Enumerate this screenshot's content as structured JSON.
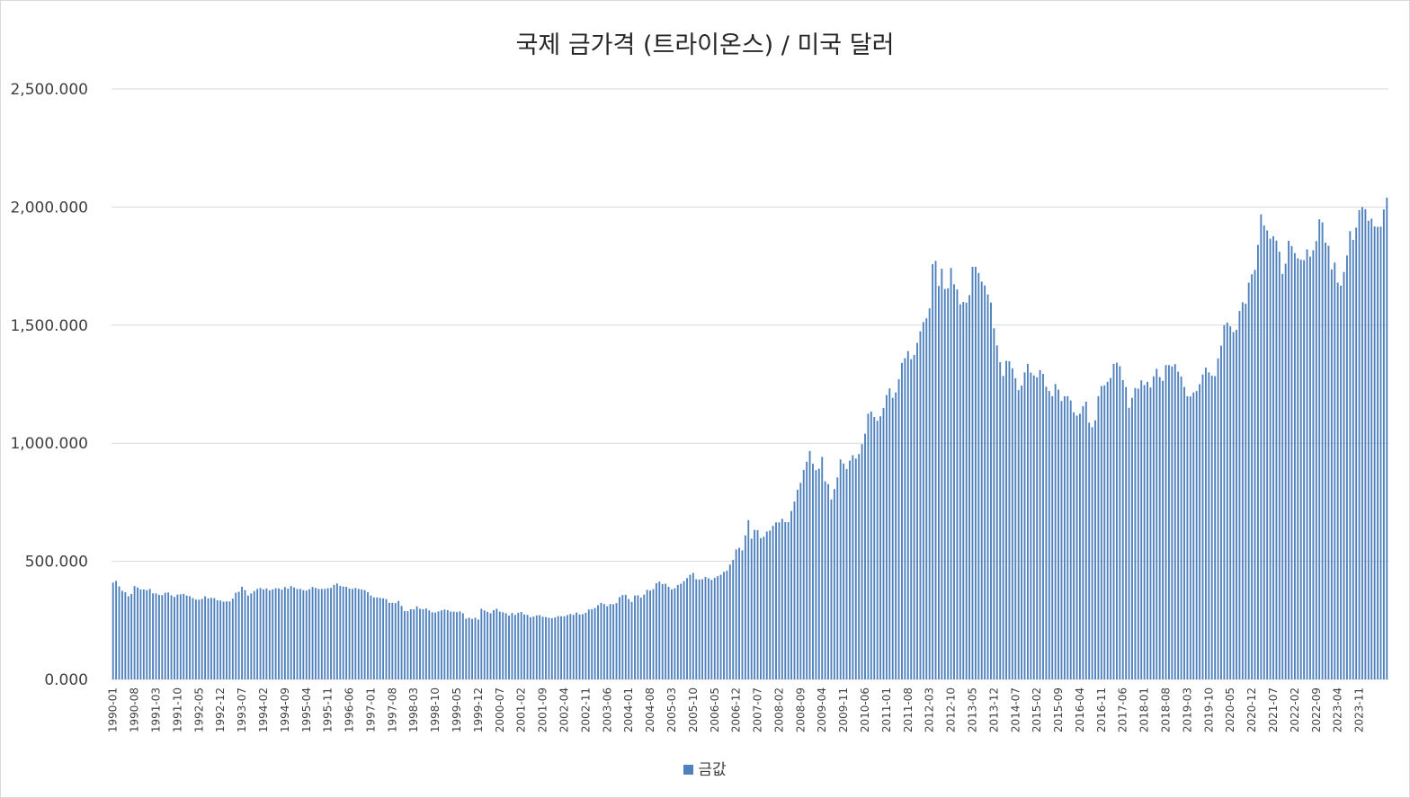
{
  "chart_data": {
    "type": "bar",
    "title": "국제 금가격 (트라이온스) / 미국 달러",
    "xlabel": "",
    "ylabel": "",
    "ylim": [
      0,
      2500
    ],
    "y_ticks": [
      "0.000",
      "500.000",
      "1,000.000",
      "1,500.000",
      "2,000.000",
      "2,500.000"
    ],
    "y_tick_values": [
      0,
      500,
      1000,
      1500,
      2000,
      2500
    ],
    "grid": true,
    "legend_position": "bottom",
    "bar_color": "#4f81bd",
    "x_tick_labels": [
      "1990-01",
      "1990-08",
      "1991-03",
      "1991-10",
      "1992-05",
      "1992-12",
      "1993-07",
      "1994-02",
      "1994-09",
      "1995-04",
      "1995-11",
      "1996-06",
      "1997-01",
      "1997-08",
      "1998-03",
      "1998-10",
      "1999-05",
      "1999-12",
      "2000-07",
      "2001-02",
      "2001-09",
      "2002-04",
      "2002-11",
      "2003-06",
      "2004-01",
      "2004-08",
      "2005-03",
      "2005-10",
      "2006-05",
      "2006-12",
      "2007-07",
      "2008-02",
      "2008-09",
      "2009-04",
      "2009-11",
      "2010-06",
      "2011-01",
      "2011-08",
      "2012-03",
      "2012-10",
      "2013-05",
      "2013-12",
      "2014-07",
      "2015-02",
      "2015-09",
      "2016-04",
      "2016-11",
      "2017-06",
      "2018-01",
      "2018-08",
      "2019-03",
      "2019-10",
      "2020-05",
      "2020-12",
      "2021-07",
      "2022-02",
      "2022-09",
      "2023-04",
      "2023-11"
    ],
    "series": [
      {
        "name": "금값",
        "start": "1990-01",
        "end": "2023-12",
        "values": [
          410,
          417,
          394,
          375,
          369,
          352,
          362,
          395,
          389,
          381,
          381,
          378,
          383,
          364,
          364,
          358,
          357,
          367,
          368,
          356,
          349,
          359,
          360,
          362,
          355,
          352,
          344,
          338,
          337,
          341,
          352,
          343,
          345,
          344,
          335,
          334,
          329,
          330,
          330,
          342,
          367,
          371,
          392,
          378,
          355,
          364,
          374,
          383,
          387,
          381,
          385,
          377,
          381,
          386,
          385,
          380,
          391,
          384,
          395,
          389,
          383,
          383,
          378,
          376,
          382,
          391,
          387,
          383,
          383,
          383,
          386,
          387,
          400,
          406,
          396,
          393,
          392,
          385,
          383,
          387,
          383,
          381,
          378,
          369,
          355,
          347,
          347,
          345,
          343,
          340,
          324,
          324,
          323,
          332,
          311,
          289,
          289,
          297,
          296,
          309,
          299,
          297,
          300,
          292,
          284,
          283,
          288,
          292,
          296,
          293,
          287,
          287,
          285,
          288,
          280,
          257,
          261,
          256,
          261,
          253,
          299,
          292,
          286,
          280,
          293,
          299,
          287,
          284,
          280,
          270,
          281,
          273,
          282,
          285,
          275,
          273,
          263,
          266,
          271,
          272,
          265,
          264,
          261,
          259,
          262,
          268,
          267,
          267,
          272,
          277,
          273,
          283,
          275,
          276,
          282,
          296,
          297,
          302,
          314,
          324,
          319,
          310,
          319,
          318,
          323,
          348,
          357,
          358,
          340,
          328,
          355,
          356,
          346,
          359,
          379,
          376,
          382,
          407,
          414,
          404,
          405,
          392,
          381,
          386,
          400,
          405,
          416,
          429,
          443,
          451,
          424,
          423,
          424,
          434,
          428,
          421,
          430,
          437,
          443,
          455,
          460,
          486,
          506,
          550,
          557,
          546,
          610,
          674,
          596,
          633,
          632,
          598,
          604,
          626,
          630,
          650,
          665,
          665,
          680,
          666,
          666,
          713,
          753,
          803,
          832,
          887,
          922,
          967,
          913,
          886,
          892,
          942,
          839,
          827,
          762,
          806,
          855,
          931,
          914,
          891,
          926,
          949,
          935,
          954,
          996,
          1040,
          1125,
          1134,
          1111,
          1095,
          1114,
          1149,
          1204,
          1232,
          1192,
          1215,
          1271,
          1340,
          1360,
          1390,
          1356,
          1374,
          1425,
          1474,
          1513,
          1529,
          1571,
          1758,
          1772,
          1666,
          1739,
          1653,
          1656,
          1742,
          1673,
          1651,
          1588,
          1598,
          1595,
          1627,
          1747,
          1747,
          1721,
          1684,
          1668,
          1630,
          1596,
          1487,
          1414,
          1343,
          1285,
          1349,
          1347,
          1317,
          1275,
          1225,
          1244,
          1300,
          1336,
          1299,
          1287,
          1279,
          1310,
          1294,
          1239,
          1221,
          1199,
          1251,
          1227,
          1179,
          1199,
          1199,
          1181,
          1131,
          1117,
          1125,
          1157,
          1176,
          1087,
          1068,
          1097,
          1199,
          1242,
          1245,
          1260,
          1276,
          1336,
          1341,
          1326,
          1267,
          1238,
          1150,
          1192,
          1234,
          1231,
          1266,
          1246,
          1260,
          1236,
          1283,
          1315,
          1280,
          1264,
          1331,
          1331,
          1325,
          1335,
          1303,
          1282,
          1238,
          1199,
          1198,
          1215,
          1221,
          1250,
          1291,
          1320,
          1300,
          1286,
          1284,
          1359,
          1413,
          1500,
          1511,
          1495,
          1471,
          1480,
          1560,
          1597,
          1591,
          1680,
          1715,
          1734,
          1840,
          1969,
          1922,
          1901,
          1866,
          1876,
          1858,
          1811,
          1717,
          1760,
          1857,
          1835,
          1805,
          1783,
          1777,
          1775,
          1821,
          1790,
          1817,
          1856,
          1948,
          1935,
          1849,
          1836,
          1736,
          1765,
          1680,
          1667,
          1725,
          1795,
          1898,
          1861,
          1913,
          1987,
          2000,
          1991,
          1942,
          1951,
          1918,
          1916,
          1917,
          1990,
          2040
        ]
      }
    ]
  }
}
